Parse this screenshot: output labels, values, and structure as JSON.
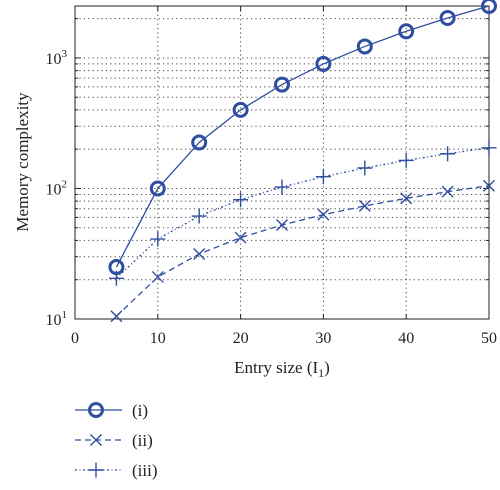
{
  "chart_data": {
    "type": "line",
    "title": "",
    "xlabel": "Entry size (I",
    "xlabel_sub": "1",
    "xlabel_close": ")",
    "ylabel": "Memory complexity",
    "xlim": [
      0,
      50
    ],
    "ylim": [
      10,
      2500
    ],
    "yscale": "log",
    "x_ticks": [
      0,
      10,
      20,
      30,
      40,
      50
    ],
    "x_tick_labels": [
      "0",
      "10",
      "20",
      "30",
      "40",
      "50"
    ],
    "y_ticks": [
      10,
      100,
      1000
    ],
    "y_tick_base": "10",
    "y_tick_exponents": [
      "1",
      "2",
      "3"
    ],
    "grid": true,
    "legend_position": "below",
    "color": "#2f4ea0",
    "x": [
      5,
      10,
      15,
      20,
      25,
      30,
      35,
      40,
      45,
      50
    ],
    "series": [
      {
        "name": "(i)",
        "marker": "circle",
        "dash": "solid",
        "values": [
          25,
          100,
          225,
          400,
          625,
          900,
          1225,
          1600,
          2025,
          2500
        ]
      },
      {
        "name": "(ii)",
        "marker": "x",
        "dash": "dashed",
        "values": [
          10.5,
          21,
          31.5,
          42,
          52.5,
          63,
          73.5,
          84,
          94.5,
          105
        ]
      },
      {
        "name": "(iii)",
        "marker": "plus",
        "dash": "dotted",
        "values": [
          20.5,
          41,
          61.5,
          82,
          102.5,
          123,
          143.5,
          164,
          184.5,
          205
        ]
      }
    ]
  }
}
